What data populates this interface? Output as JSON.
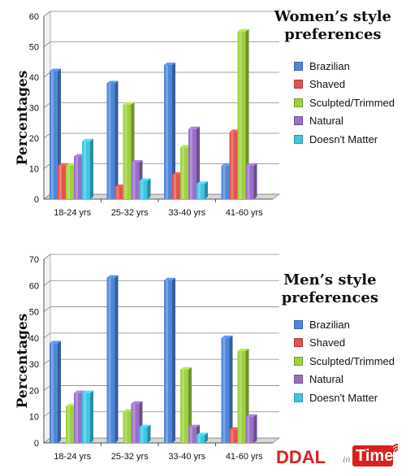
{
  "chart_data": [
    {
      "type": "bar",
      "title_lines": [
        "Women’s style",
        "preferences"
      ],
      "ylabel": "Percentages",
      "xlabel": "",
      "ylim": [
        0,
        60
      ],
      "yticks": [
        "0",
        "10",
        "20",
        "30",
        "40",
        "50",
        "60"
      ],
      "categories": [
        "18-24 yrs",
        "25-32 yrs",
        "33-40 yrs",
        "41-60 yrs"
      ],
      "series": [
        {
          "name": "Brazilian",
          "color": "#4f86d9",
          "values": [
            42,
            38,
            44,
            11
          ]
        },
        {
          "name": "Shaved",
          "color": "#e5524c",
          "values": [
            11,
            4,
            8,
            22
          ]
        },
        {
          "name": "Sculpted/Trimmed",
          "color": "#9ed13f",
          "values": [
            11,
            31,
            17,
            55
          ]
        },
        {
          "name": "Natural",
          "color": "#9a6fc7",
          "values": [
            14,
            12,
            23,
            11
          ]
        },
        {
          "name": "Doesn't Matter",
          "color": "#3ec6e3",
          "values": [
            19,
            6,
            5,
            0
          ]
        }
      ],
      "legend_position": "right",
      "grid": true
    },
    {
      "type": "bar",
      "title_lines": [
        "Men’s style",
        "preferences"
      ],
      "ylabel": "Percentages",
      "xlabel": "",
      "ylim": [
        0,
        70
      ],
      "yticks": [
        "0",
        "10",
        "20",
        "30",
        "40",
        "50",
        "60",
        "70"
      ],
      "categories": [
        "18-24 yrs",
        "25-32 yrs",
        "33-40 yrs",
        "41-60 yrs"
      ],
      "series": [
        {
          "name": "Brazilian",
          "color": "#4f86d9",
          "values": [
            38,
            63,
            62,
            40
          ]
        },
        {
          "name": "Shaved",
          "color": "#e5524c",
          "values": [
            0,
            0,
            0,
            5
          ]
        },
        {
          "name": "Sculpted/Trimmed",
          "color": "#9ed13f",
          "values": [
            14,
            12,
            28,
            35
          ]
        },
        {
          "name": "Natural",
          "color": "#9a6fc7",
          "values": [
            19,
            15,
            6,
            10
          ]
        },
        {
          "name": "Doesn't Matter",
          "color": "#3ec6e3",
          "values": [
            19,
            6,
            3,
            0
          ]
        }
      ],
      "legend_position": "right",
      "grid": true
    }
  ],
  "logo": {
    "brand": "DDAL",
    "small": "in",
    "badge": "Time",
    "icon": "wifi-signal-icon"
  }
}
